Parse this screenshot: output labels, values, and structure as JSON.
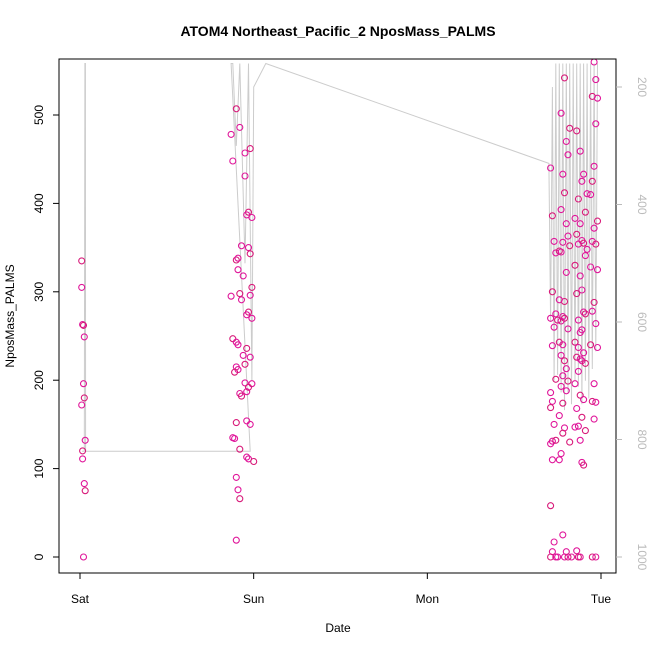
{
  "chart_data": {
    "type": "scatter",
    "title": "ATOM4 Northeast_Pacific_2 NposMass_PALMS",
    "xlabel": "Date",
    "ylabel": "NposMass_PALMS",
    "x_ticks": [
      {
        "label": "Sat",
        "value": 0
      },
      {
        "label": "Sun",
        "value": 1
      },
      {
        "label": "Mon",
        "value": 2
      },
      {
        "label": "Tue",
        "value": 3
      }
    ],
    "y_ticks": [
      0,
      100,
      200,
      300,
      400,
      500
    ],
    "ylim": [
      0,
      565
    ],
    "xlim": [
      -0.1,
      3.1
    ],
    "right_axis": {
      "quantity": "pressure",
      "ticks": [
        200,
        400,
        600,
        800,
        1000
      ],
      "ylim_top": 160,
      "ylim_bottom": 1020,
      "color": "#bbbbbb"
    },
    "grid": false,
    "colors": {
      "points_a": "#e0169a",
      "points_b": "#d81b7a",
      "line": "#cccccc"
    },
    "series": [
      {
        "role": "points",
        "x_unit": "days since Saturday 00:00",
        "points": [
          [
            0.01,
            335
          ],
          [
            0.01,
            305
          ],
          [
            0.015,
            263
          ],
          [
            0.02,
            262
          ],
          [
            0.025,
            249
          ],
          [
            0.02,
            196
          ],
          [
            0.025,
            180
          ],
          [
            0.01,
            172
          ],
          [
            0.03,
            132
          ],
          [
            0.015,
            120
          ],
          [
            0.015,
            111
          ],
          [
            0.025,
            83
          ],
          [
            0.03,
            75
          ],
          [
            0.02,
            0
          ],
          [
            0.87,
            478
          ],
          [
            0.9,
            507
          ],
          [
            0.92,
            486
          ],
          [
            0.95,
            457
          ],
          [
            0.98,
            462
          ],
          [
            0.88,
            448
          ],
          [
            0.95,
            431
          ],
          [
            0.97,
            390
          ],
          [
            0.99,
            384
          ],
          [
            0.96,
            387
          ],
          [
            0.9,
            336
          ],
          [
            0.93,
            352
          ],
          [
            0.97,
            350
          ],
          [
            0.98,
            343
          ],
          [
            0.91,
            338
          ],
          [
            0.91,
            325
          ],
          [
            0.99,
            305
          ],
          [
            0.94,
            318
          ],
          [
            0.98,
            296
          ],
          [
            0.92,
            298
          ],
          [
            0.87,
            295
          ],
          [
            0.93,
            291
          ],
          [
            0.97,
            277
          ],
          [
            0.96,
            274
          ],
          [
            0.99,
            270
          ],
          [
            0.88,
            247
          ],
          [
            0.9,
            243
          ],
          [
            0.91,
            240
          ],
          [
            0.96,
            236
          ],
          [
            0.94,
            228
          ],
          [
            0.98,
            226
          ],
          [
            0.95,
            218
          ],
          [
            0.9,
            215
          ],
          [
            0.91,
            212
          ],
          [
            0.89,
            209
          ],
          [
            0.99,
            196
          ],
          [
            0.95,
            197
          ],
          [
            0.97,
            192
          ],
          [
            0.96,
            187
          ],
          [
            0.92,
            185
          ],
          [
            0.93,
            182
          ],
          [
            0.96,
            154
          ],
          [
            0.98,
            150
          ],
          [
            0.9,
            152
          ],
          [
            0.88,
            135
          ],
          [
            0.89,
            134
          ],
          [
            0.92,
            122
          ],
          [
            0.96,
            113
          ],
          [
            0.97,
            111
          ],
          [
            1.0,
            108
          ],
          [
            0.9,
            90
          ],
          [
            0.91,
            76
          ],
          [
            0.92,
            66
          ],
          [
            0.9,
            19
          ],
          [
            2.71,
            440
          ],
          [
            2.72,
            386
          ],
          [
            2.73,
            357
          ],
          [
            2.74,
            344
          ],
          [
            2.72,
            300
          ],
          [
            2.74,
            275
          ],
          [
            2.71,
            270
          ],
          [
            2.75,
            268
          ],
          [
            2.73,
            260
          ],
          [
            2.72,
            239
          ],
          [
            2.74,
            201
          ],
          [
            2.71,
            186
          ],
          [
            2.72,
            176
          ],
          [
            2.71,
            169
          ],
          [
            2.73,
            150
          ],
          [
            2.72,
            131
          ],
          [
            2.74,
            132
          ],
          [
            2.71,
            128
          ],
          [
            2.72,
            110
          ],
          [
            2.71,
            58
          ],
          [
            2.73,
            17
          ],
          [
            2.72,
            6
          ],
          [
            2.71,
            0
          ],
          [
            2.74,
            0
          ],
          [
            2.75,
            0
          ],
          [
            2.79,
            542
          ],
          [
            2.77,
            502
          ],
          [
            2.8,
            470
          ],
          [
            2.82,
            485
          ],
          [
            2.81,
            455
          ],
          [
            2.78,
            433
          ],
          [
            2.79,
            412
          ],
          [
            2.77,
            393
          ],
          [
            2.8,
            377
          ],
          [
            2.76,
            346
          ],
          [
            2.78,
            356
          ],
          [
            2.81,
            363
          ],
          [
            2.82,
            352
          ],
          [
            2.77,
            345
          ],
          [
            2.8,
            322
          ],
          [
            2.79,
            289
          ],
          [
            2.76,
            291
          ],
          [
            2.78,
            272
          ],
          [
            2.79,
            270
          ],
          [
            2.77,
            267
          ],
          [
            2.81,
            258
          ],
          [
            2.76,
            243
          ],
          [
            2.78,
            240
          ],
          [
            2.77,
            228
          ],
          [
            2.79,
            222
          ],
          [
            2.8,
            213
          ],
          [
            2.78,
            205
          ],
          [
            2.81,
            199
          ],
          [
            2.77,
            193
          ],
          [
            2.8,
            188
          ],
          [
            2.78,
            174
          ],
          [
            2.76,
            160
          ],
          [
            2.79,
            146
          ],
          [
            2.78,
            140
          ],
          [
            2.77,
            117
          ],
          [
            2.76,
            110
          ],
          [
            2.82,
            130
          ],
          [
            2.78,
            25
          ],
          [
            2.8,
            6
          ],
          [
            2.81,
            0
          ],
          [
            2.79,
            0
          ],
          [
            2.83,
            0
          ],
          [
            2.86,
            482
          ],
          [
            2.88,
            459
          ],
          [
            2.89,
            425
          ],
          [
            2.87,
            405
          ],
          [
            2.9,
            433
          ],
          [
            2.92,
            411
          ],
          [
            2.91,
            390
          ],
          [
            2.85,
            383
          ],
          [
            2.88,
            377
          ],
          [
            2.86,
            365
          ],
          [
            2.89,
            358
          ],
          [
            2.87,
            354
          ],
          [
            2.9,
            355
          ],
          [
            2.92,
            348
          ],
          [
            2.91,
            341
          ],
          [
            2.85,
            330
          ],
          [
            2.88,
            318
          ],
          [
            2.89,
            302
          ],
          [
            2.86,
            298
          ],
          [
            2.87,
            268
          ],
          [
            2.9,
            277
          ],
          [
            2.91,
            275
          ],
          [
            2.89,
            257
          ],
          [
            2.88,
            254
          ],
          [
            2.85,
            243
          ],
          [
            2.87,
            237
          ],
          [
            2.9,
            231
          ],
          [
            2.86,
            226
          ],
          [
            2.88,
            224
          ],
          [
            2.89,
            222
          ],
          [
            2.91,
            219
          ],
          [
            2.87,
            210
          ],
          [
            2.85,
            196
          ],
          [
            2.88,
            183
          ],
          [
            2.9,
            178
          ],
          [
            2.86,
            168
          ],
          [
            2.89,
            158
          ],
          [
            2.87,
            148
          ],
          [
            2.85,
            147
          ],
          [
            2.91,
            143
          ],
          [
            2.88,
            132
          ],
          [
            2.89,
            107
          ],
          [
            2.9,
            104
          ],
          [
            2.86,
            7
          ],
          [
            2.88,
            0
          ],
          [
            2.87,
            0
          ],
          [
            2.96,
            560
          ],
          [
            2.97,
            540
          ],
          [
            2.95,
            521
          ],
          [
            2.98,
            519
          ],
          [
            2.97,
            490
          ],
          [
            2.95,
            425
          ],
          [
            2.96,
            442
          ],
          [
            2.94,
            410
          ],
          [
            2.98,
            380
          ],
          [
            2.96,
            372
          ],
          [
            2.95,
            357
          ],
          [
            2.97,
            354
          ],
          [
            2.94,
            328
          ],
          [
            2.98,
            325
          ],
          [
            2.96,
            288
          ],
          [
            2.95,
            278
          ],
          [
            2.97,
            264
          ],
          [
            2.94,
            240
          ],
          [
            2.98,
            237
          ],
          [
            2.96,
            196
          ],
          [
            2.95,
            176
          ],
          [
            2.97,
            175
          ],
          [
            2.96,
            156
          ],
          [
            2.95,
            0
          ],
          [
            2.97,
            0
          ]
        ]
      },
      {
        "role": "pressure-trace",
        "x_unit": "days since Saturday 00:00",
        "y_unit": "pressure",
        "points": [
          [
            0.012,
            820
          ],
          [
            0.025,
            820
          ],
          [
            0.028,
            160
          ],
          [
            0.031,
            160
          ],
          [
            0.032,
            820
          ],
          [
            0.98,
            820
          ],
          [
            0.87,
            160
          ],
          [
            0.88,
            160
          ],
          [
            0.9,
            300
          ],
          [
            0.92,
            160
          ],
          [
            0.95,
            500
          ],
          [
            0.97,
            160
          ],
          [
            0.99,
            700
          ],
          [
            1.0,
            200
          ],
          [
            1.07,
            160
          ],
          [
            2.7,
            330
          ],
          [
            2.71,
            600
          ],
          [
            2.72,
            200
          ],
          [
            2.73,
            700
          ],
          [
            2.74,
            160
          ],
          [
            2.75,
            690
          ],
          [
            2.76,
            160
          ],
          [
            2.77,
            720
          ],
          [
            2.78,
            160
          ],
          [
            2.79,
            750
          ],
          [
            2.8,
            160
          ],
          [
            2.81,
            720
          ],
          [
            2.82,
            160
          ],
          [
            2.83,
            740
          ],
          [
            2.84,
            160
          ],
          [
            2.85,
            700
          ],
          [
            2.86,
            160
          ],
          [
            2.87,
            710
          ],
          [
            2.88,
            160
          ],
          [
            2.89,
            740
          ],
          [
            2.9,
            160
          ],
          [
            2.91,
            700
          ],
          [
            2.92,
            160
          ],
          [
            2.93,
            730
          ],
          [
            2.94,
            160
          ],
          [
            2.95,
            680
          ],
          [
            2.96,
            160
          ],
          [
            2.97,
            650
          ],
          [
            2.98,
            160
          ]
        ]
      }
    ]
  }
}
